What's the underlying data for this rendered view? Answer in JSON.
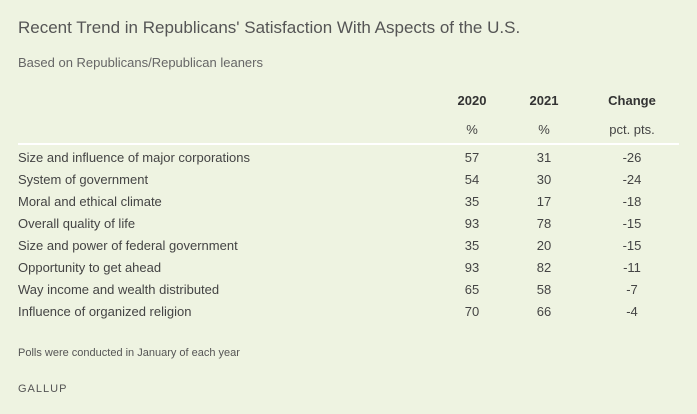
{
  "title": "Recent Trend in Republicans' Satisfaction With Aspects of the U.S.",
  "subtitle": "Based on Republicans/Republican leaners",
  "columns": [
    {
      "header": "2020",
      "unit": "%"
    },
    {
      "header": "2021",
      "unit": "%"
    },
    {
      "header": "Change",
      "unit": "pct. pts."
    }
  ],
  "rows": [
    {
      "label": "Size and influence of major corporations",
      "y2020": "57",
      "y2021": "31",
      "change": "-26"
    },
    {
      "label": "System of government",
      "y2020": "54",
      "y2021": "30",
      "change": "-24"
    },
    {
      "label": "Moral and ethical climate",
      "y2020": "35",
      "y2021": "17",
      "change": "-18"
    },
    {
      "label": "Overall quality of life",
      "y2020": "93",
      "y2021": "78",
      "change": "-15"
    },
    {
      "label": "Size and power of federal government",
      "y2020": "35",
      "y2021": "20",
      "change": "-15"
    },
    {
      "label": "Opportunity to get ahead",
      "y2020": "93",
      "y2021": "82",
      "change": "-11"
    },
    {
      "label": "Way income and wealth distributed",
      "y2020": "65",
      "y2021": "58",
      "change": "-7"
    },
    {
      "label": "Influence of organized religion",
      "y2020": "70",
      "y2021": "66",
      "change": "-4"
    }
  ],
  "note": "Polls were conducted in January of each year",
  "brand": "GALLUP"
}
